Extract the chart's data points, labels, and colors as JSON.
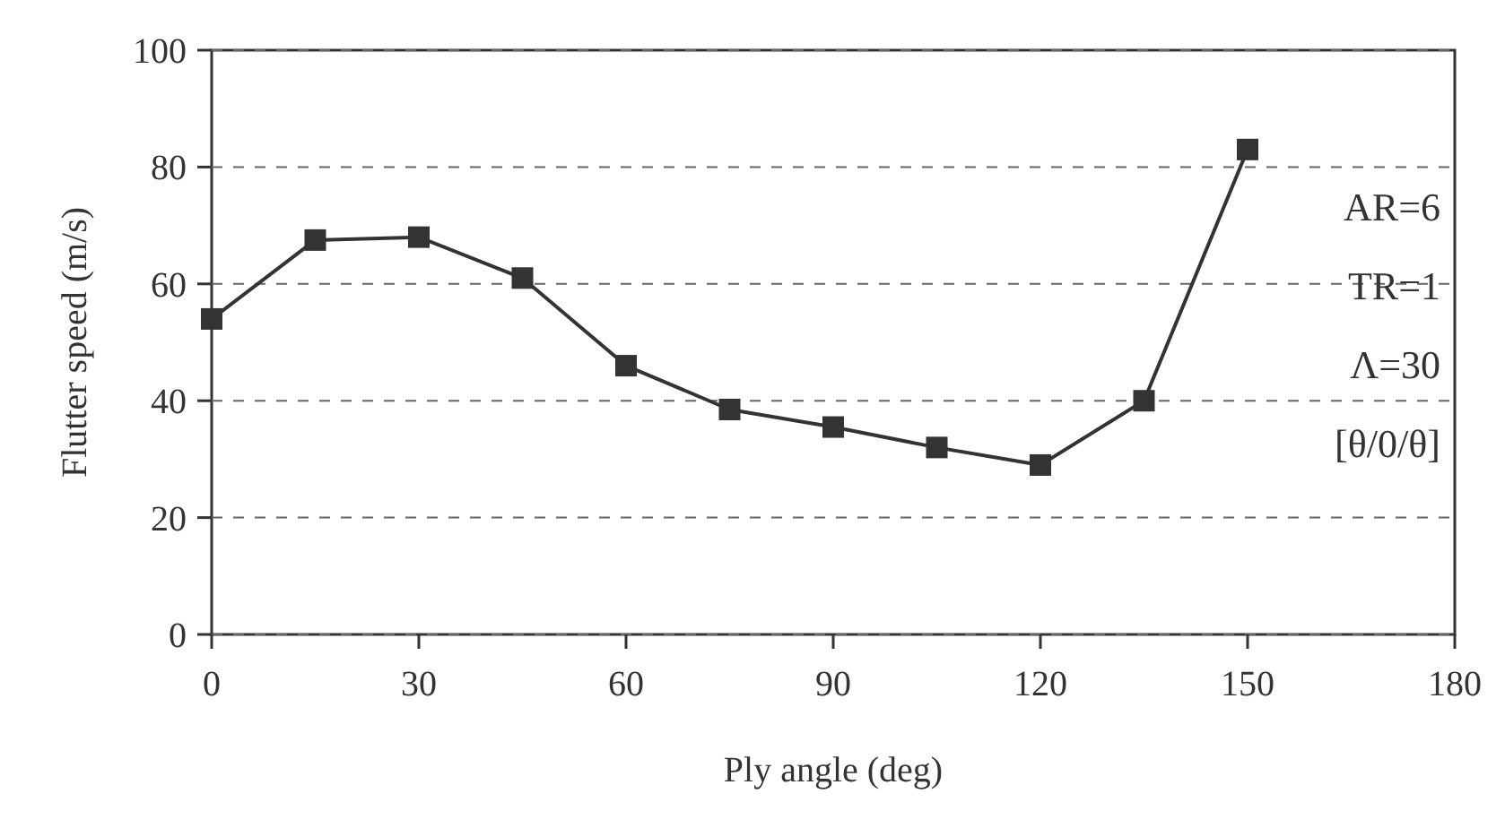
{
  "chart_data": {
    "type": "line",
    "xlabel": "Ply angle (deg)",
    "ylabel": "Flutter speed (m/s)",
    "x": [
      0,
      15,
      30,
      45,
      60,
      75,
      90,
      105,
      120,
      135,
      150
    ],
    "series": [
      {
        "color": "#333333",
        "values": [
          54,
          67.5,
          68,
          61,
          46,
          38.5,
          35.5,
          32,
          29,
          40,
          83
        ]
      }
    ],
    "xlim": [
      0,
      180
    ],
    "xticks": [
      0,
      30,
      60,
      90,
      120,
      150,
      180
    ],
    "ylim": [
      0,
      100
    ],
    "yticks": [
      0,
      20,
      40,
      60,
      80,
      100
    ],
    "grid": "y",
    "marker": "square",
    "line_style": "solid",
    "annotations": [
      "AR=6",
      "TR=1",
      "Λ=30",
      "[θ/0/θ]"
    ]
  }
}
